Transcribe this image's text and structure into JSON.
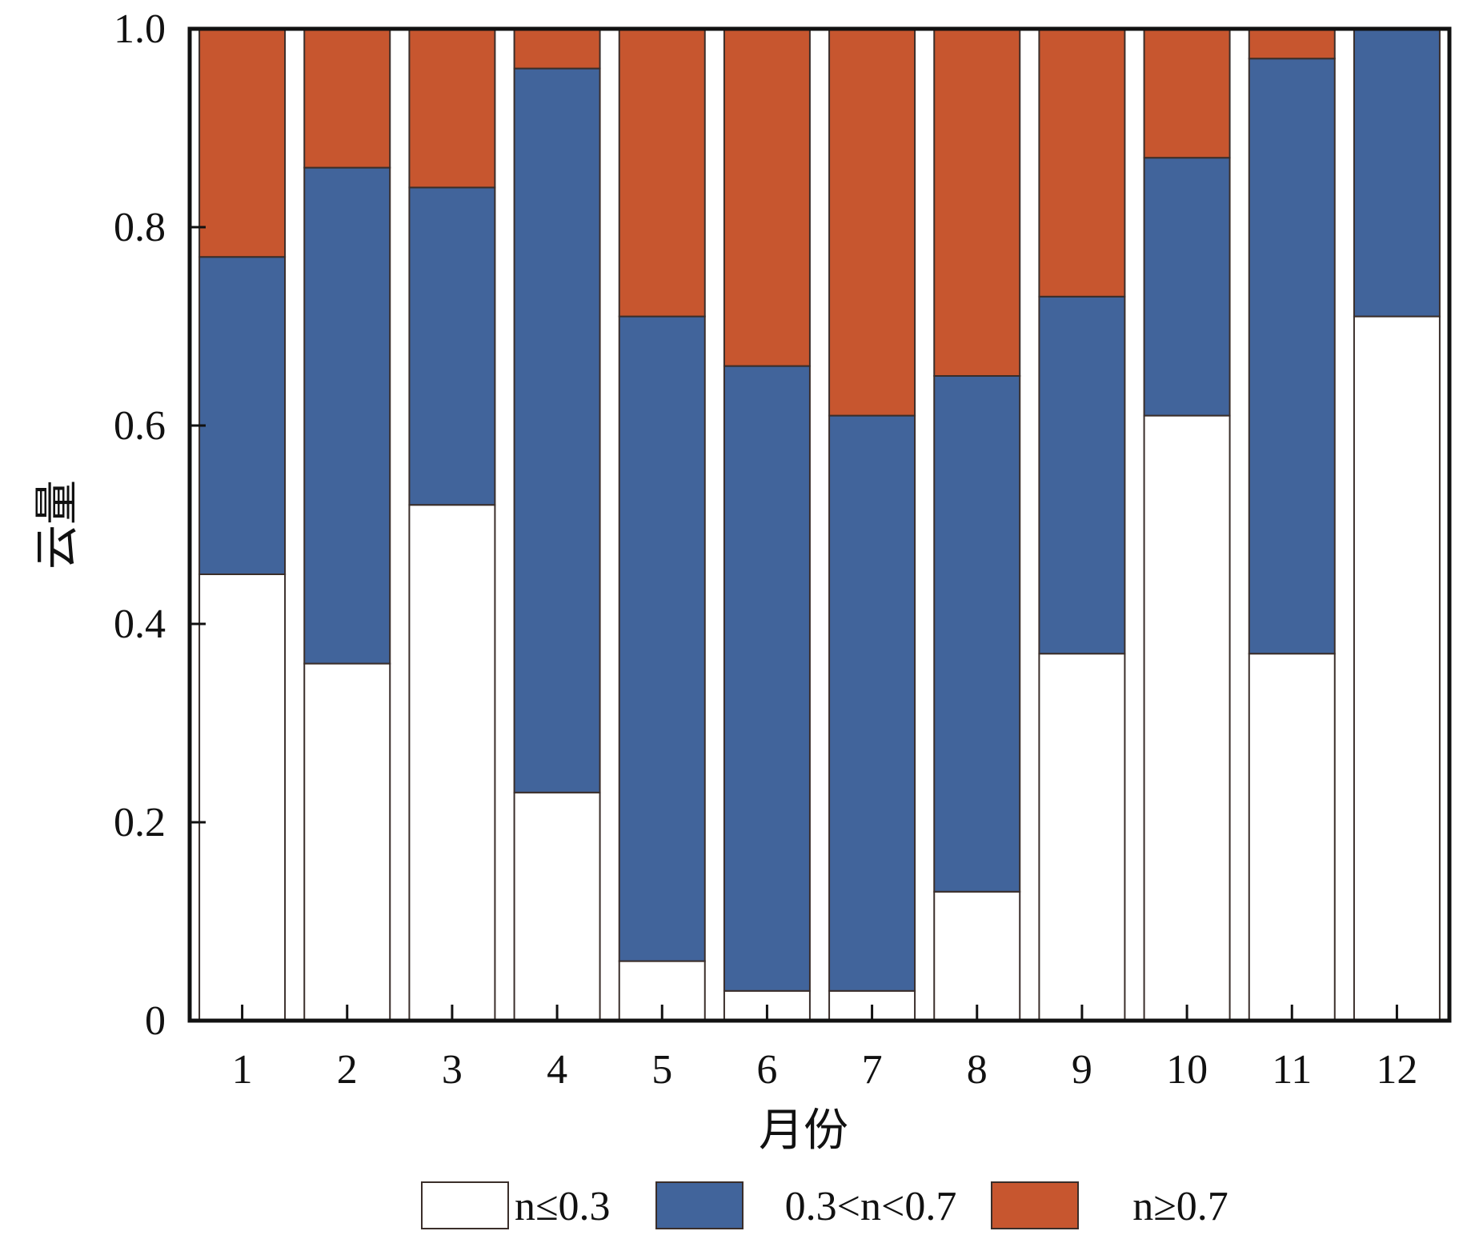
{
  "chart_data": {
    "type": "bar",
    "stacked": true,
    "categories": [
      "1",
      "2",
      "3",
      "4",
      "5",
      "6",
      "7",
      "8",
      "9",
      "10",
      "11",
      "12"
    ],
    "series": [
      {
        "name": "n≤0.3",
        "values": [
          0.45,
          0.36,
          0.52,
          0.23,
          0.06,
          0.03,
          0.03,
          0.13,
          0.37,
          0.61,
          0.37,
          0.71
        ]
      },
      {
        "name": "0.3<n<0.7",
        "values": [
          0.32,
          0.5,
          0.32,
          0.73,
          0.65,
          0.63,
          0.58,
          0.52,
          0.36,
          0.26,
          0.6,
          0.29
        ]
      },
      {
        "name": "n≥0.7",
        "values": [
          0.23,
          0.14,
          0.16,
          0.04,
          0.29,
          0.34,
          0.39,
          0.35,
          0.27,
          0.13,
          0.03,
          0.0
        ]
      }
    ],
    "yticks": [
      "0",
      "0.2",
      "0.4",
      "0.6",
      "0.8",
      "1.0"
    ],
    "xlabel": "月份",
    "ylabel": "云量",
    "ylim": [
      0,
      1
    ],
    "grid": false,
    "legend_position": "bottom",
    "colors": {
      "low": "#ffffff",
      "mid": "#41649b",
      "high": "#c7562f",
      "outline": "#3a2e2a",
      "axis": "#111111"
    }
  }
}
